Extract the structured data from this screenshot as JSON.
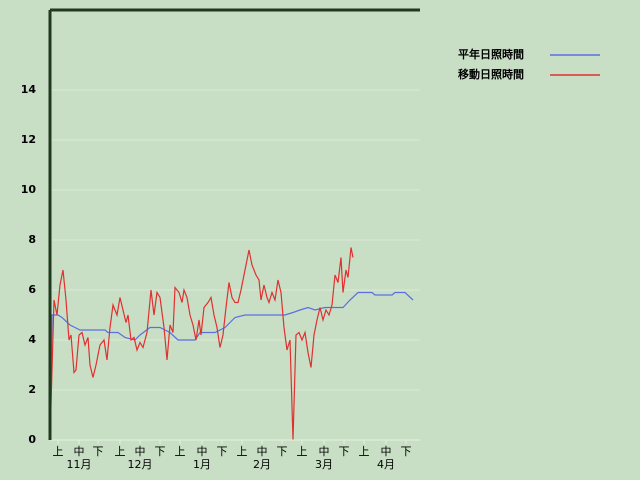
{
  "chart_data": {
    "type": "line",
    "xlim": [
      0,
      185
    ],
    "ylim": [
      0,
      17.2
    ],
    "yticks": [
      0,
      2,
      4,
      6,
      8,
      10,
      12,
      14
    ],
    "xticks": [
      {
        "value": 4,
        "label": "上"
      },
      {
        "value": 14.5,
        "label": "中"
      },
      {
        "value": 24,
        "label": "下"
      },
      {
        "value": 35,
        "label": "上"
      },
      {
        "value": 45,
        "label": "中"
      },
      {
        "value": 55,
        "label": "下"
      },
      {
        "value": 65,
        "label": "上"
      },
      {
        "value": 76,
        "label": "中"
      },
      {
        "value": 86,
        "label": "下"
      },
      {
        "value": 96,
        "label": "上"
      },
      {
        "value": 106,
        "label": "中"
      },
      {
        "value": 116,
        "label": "下"
      },
      {
        "value": 126,
        "label": "上"
      },
      {
        "value": 137,
        "label": "中"
      },
      {
        "value": 147,
        "label": "下"
      },
      {
        "value": 157,
        "label": "上"
      },
      {
        "value": 168,
        "label": "中"
      },
      {
        "value": 178,
        "label": "下"
      }
    ],
    "month_labels": [
      {
        "value": 14.5,
        "label": "11月"
      },
      {
        "value": 45,
        "label": "12月"
      },
      {
        "value": 76,
        "label": "1月"
      },
      {
        "value": 106,
        "label": "2月"
      },
      {
        "value": 137,
        "label": "3月"
      },
      {
        "value": 168,
        "label": "4月"
      }
    ],
    "grid": true,
    "series": [
      {
        "name": "平年日照時間",
        "color": "#5b6fe0",
        "x": [
          0,
          1,
          4,
          6,
          10,
          15,
          27.5,
          29,
          34,
          37.5,
          42.5,
          45,
          50,
          55,
          60,
          64,
          72.5,
          75,
          82.5,
          87.5,
          92.5,
          97.5,
          117.5,
          121.5,
          125,
          129,
          132.5,
          137.5,
          146.5,
          150,
          154,
          161,
          162.5,
          171,
          172.5,
          177.5,
          181.5
        ],
        "values": [
          0,
          5,
          5,
          4.9,
          4.6,
          4.4,
          4.4,
          4.3,
          4.3,
          4.1,
          4.0,
          4.2,
          4.5,
          4.5,
          4.3,
          4.0,
          4.0,
          4.3,
          4.3,
          4.5,
          4.9,
          5.0,
          5.0,
          5.1,
          5.2,
          5.3,
          5.2,
          5.3,
          5.3,
          5.6,
          5.9,
          5.9,
          5.8,
          5.8,
          5.9,
          5.9,
          5.6
        ]
      },
      {
        "name": "移動日照時間",
        "color": "#e03030",
        "x": [
          0,
          2,
          3.5,
          5,
          6.5,
          8,
          9.5,
          10.5,
          12,
          13,
          14.5,
          16,
          17.5,
          19,
          20,
          21.5,
          23,
          25,
          27,
          28.5,
          30,
          31.5,
          33.5,
          35,
          36.5,
          38,
          39,
          40.5,
          42,
          43.5,
          45,
          46.5,
          48.5,
          50.5,
          52,
          53.5,
          55,
          57,
          58.5,
          60,
          61.5,
          62.5,
          64.5,
          66,
          67,
          68.5,
          70,
          71.5,
          73,
          74.5,
          75.5,
          77,
          79,
          80.5,
          82,
          83.5,
          85,
          86.5,
          88,
          89.5,
          91,
          92.5,
          94,
          95.5,
          97.5,
          99.5,
          101,
          103,
          104.5,
          105.5,
          107,
          108.5,
          109.5,
          111,
          112.5,
          114,
          115.5,
          117,
          118.5,
          120,
          121.5,
          123,
          124.5,
          126,
          127.5,
          129,
          130.5,
          132,
          133.5,
          135,
          136.5,
          138,
          139.5,
          141,
          142.5,
          144,
          145.5,
          146.5,
          148,
          149,
          150.5,
          151.5
        ],
        "values": [
          0,
          5.6,
          5.0,
          6.2,
          6.8,
          5.6,
          4.0,
          4.2,
          2.7,
          2.8,
          4.2,
          4.3,
          3.8,
          4.1,
          3.0,
          2.5,
          3.0,
          3.8,
          4.0,
          3.2,
          4.5,
          5.4,
          5.0,
          5.7,
          5.2,
          4.7,
          5.0,
          4.0,
          4.1,
          3.6,
          3.9,
          3.7,
          4.3,
          6.0,
          5.0,
          5.9,
          5.7,
          4.5,
          3.2,
          4.6,
          4.3,
          6.1,
          5.9,
          5.5,
          6.0,
          5.7,
          5.0,
          4.6,
          4.0,
          4.8,
          4.2,
          5.3,
          5.5,
          5.7,
          5.0,
          4.5,
          3.7,
          4.2,
          5.3,
          6.3,
          5.7,
          5.5,
          5.5,
          6.0,
          6.8,
          7.6,
          7.0,
          6.6,
          6.4,
          5.6,
          6.2,
          5.7,
          5.5,
          5.9,
          5.6,
          6.4,
          5.9,
          4.5,
          3.6,
          4.0,
          0,
          4.2,
          4.3,
          4.0,
          4.3,
          3.5,
          2.9,
          4.2,
          4.8,
          5.3,
          4.8,
          5.2,
          5.0,
          5.4,
          6.6,
          6.3,
          7.3,
          5.9,
          6.8,
          6.5,
          7.7,
          7.3
        ]
      }
    ],
    "legend": "top-right"
  }
}
